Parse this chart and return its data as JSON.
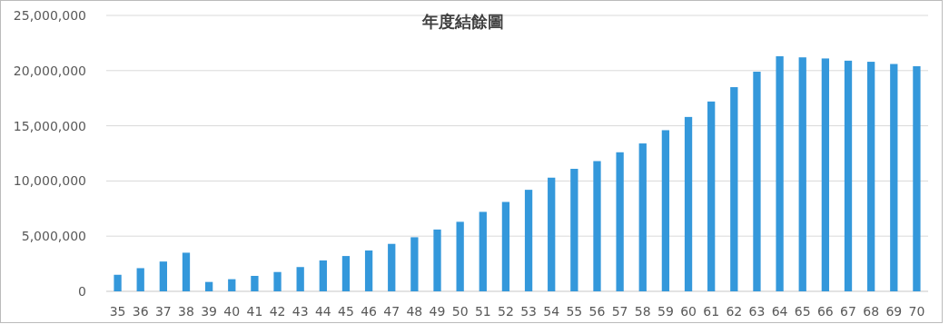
{
  "chart_data": {
    "type": "bar",
    "title": "年度結餘圖",
    "categories": [
      "35",
      "36",
      "37",
      "38",
      "39",
      "40",
      "41",
      "42",
      "43",
      "44",
      "45",
      "46",
      "47",
      "48",
      "49",
      "50",
      "51",
      "52",
      "53",
      "54",
      "55",
      "56",
      "57",
      "58",
      "59",
      "60",
      "61",
      "62",
      "63",
      "64",
      "65",
      "66",
      "67",
      "68",
      "69",
      "70"
    ],
    "values": [
      1500000,
      2100000,
      2700000,
      3500000,
      850000,
      1100000,
      1400000,
      1750000,
      2200000,
      2800000,
      3200000,
      3700000,
      4300000,
      4900000,
      5600000,
      6300000,
      7200000,
      8100000,
      9200000,
      10300000,
      11100000,
      11800000,
      12600000,
      13400000,
      14600000,
      15800000,
      17200000,
      18500000,
      19900000,
      21300000,
      21200000,
      21100000,
      20900000,
      20800000,
      20600000,
      20400000
    ],
    "color": "#3498db",
    "ylim": [
      0,
      25000000
    ],
    "yticks": [
      0,
      {
        "value": 5000000,
        "label": "5,000,000"
      },
      {
        "value": 10000000,
        "label": "10,000,000"
      },
      {
        "value": 15000000,
        "label": "15,000,000"
      },
      {
        "value": 20000000,
        "label": "20,000,000"
      },
      {
        "value": 25000000,
        "label": "25,000,000"
      }
    ],
    "grid": "y"
  }
}
